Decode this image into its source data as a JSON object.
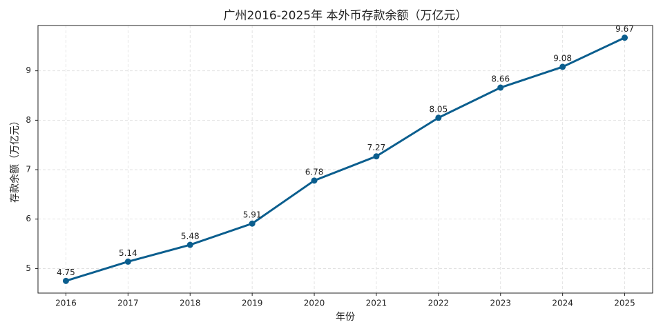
{
  "chart_data": {
    "type": "line",
    "title": "广州2016-2025年 本外币存款余额（万亿元）",
    "x_label": "年份",
    "y_label": "存款余额（万亿元）",
    "x": [
      2016,
      2017,
      2018,
      2019,
      2020,
      2021,
      2022,
      2023,
      2024,
      2025
    ],
    "series": [
      {
        "name": "存款余额",
        "color": "#0b5e8e",
        "values": [
          4.75,
          5.14,
          5.48,
          5.91,
          6.78,
          7.27,
          8.05,
          8.66,
          9.08,
          9.67
        ]
      }
    ],
    "xlim": [
      2015.55,
      2025.45
    ],
    "xticks": [
      2016,
      2017,
      2018,
      2019,
      2020,
      2021,
      2022,
      2023,
      2024,
      2025
    ],
    "ylim": [
      4.504,
      9.916
    ],
    "yticks": [
      5,
      6,
      7,
      8,
      9
    ],
    "grid": true
  }
}
